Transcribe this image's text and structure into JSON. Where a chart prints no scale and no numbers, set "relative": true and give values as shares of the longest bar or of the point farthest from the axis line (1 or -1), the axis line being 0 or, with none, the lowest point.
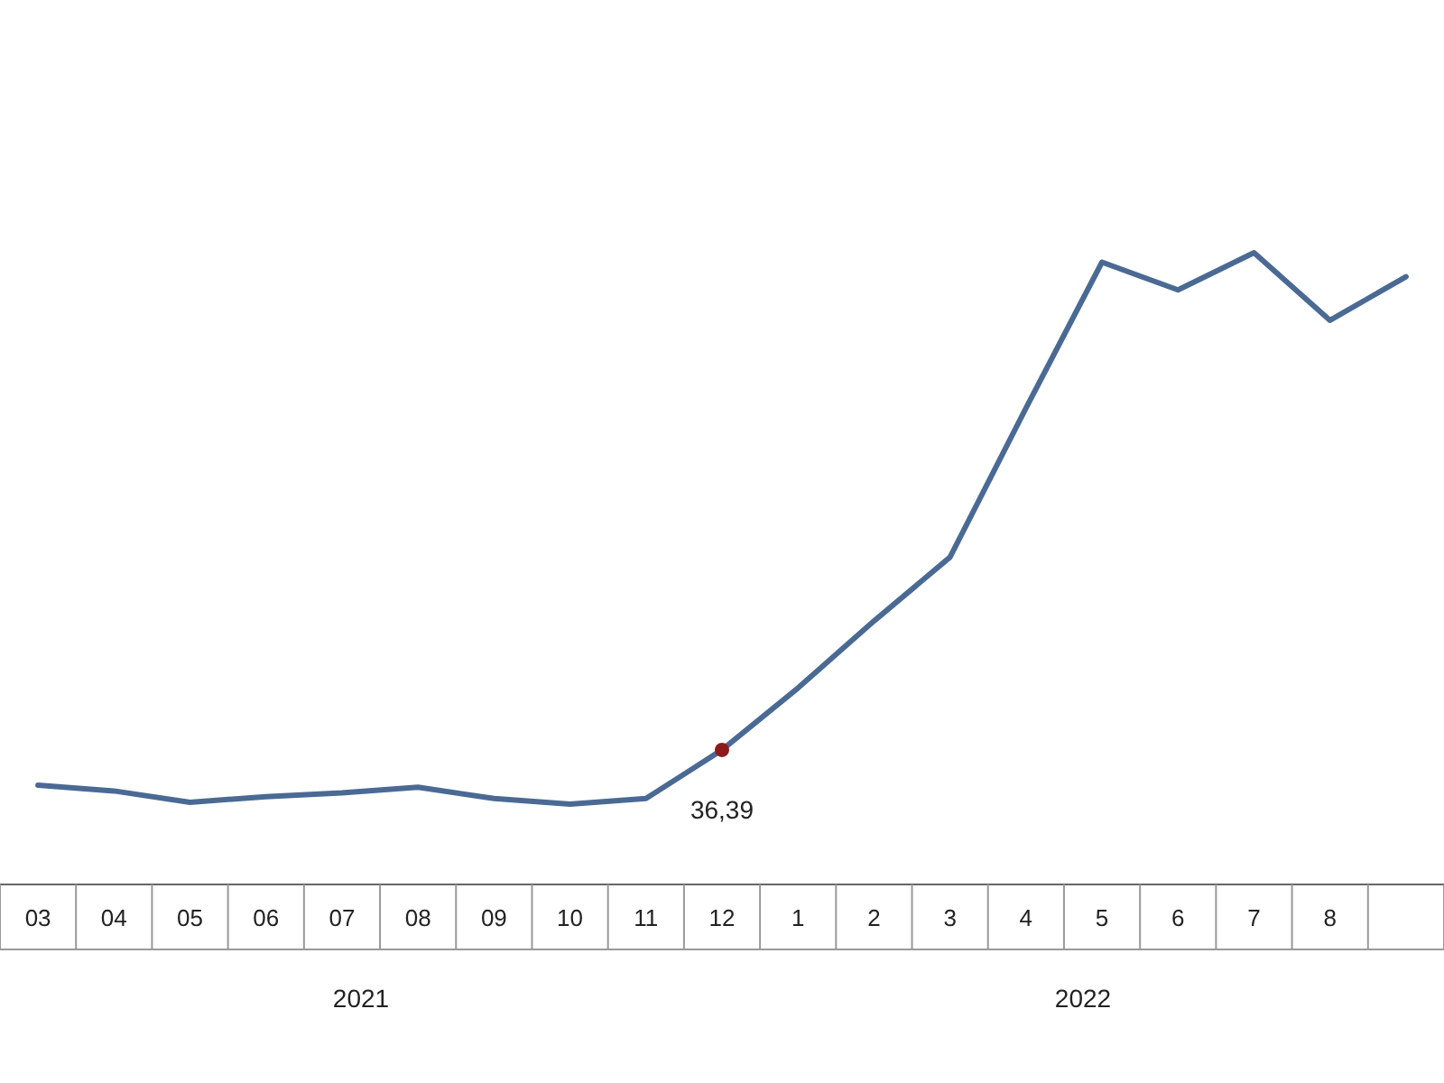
{
  "chart_data": {
    "type": "line",
    "relative": true,
    "categories": [
      "03",
      "04",
      "05",
      "06",
      "07",
      "08",
      "09",
      "10",
      "11",
      "12",
      "1",
      "2",
      "3",
      "4",
      "5",
      "6",
      "7",
      "8",
      null
    ],
    "series": [
      {
        "color": "#4a6a94",
        "values": [
          0.157,
          0.148,
          0.13,
          0.139,
          0.145,
          0.154,
          0.136,
          0.127,
          0.136,
          0.213,
          0.311,
          0.417,
          0.518,
          0.754,
          0.985,
          0.941,
          1,
          0.893,
          0.962
        ]
      },
      {
        "type": "scatter",
        "marker": "circle",
        "color": "#8b1a1a",
        "values": [
          null,
          null,
          null,
          null,
          null,
          null,
          null,
          null,
          null,
          0.213,
          null,
          null,
          null,
          null,
          null,
          null,
          null,
          null,
          null
        ]
      }
    ],
    "annotations": [
      {
        "text": "36,39",
        "x": "12",
        "y": 0.213
      },
      "2021",
      "2022"
    ],
    "line_style": "solid"
  }
}
